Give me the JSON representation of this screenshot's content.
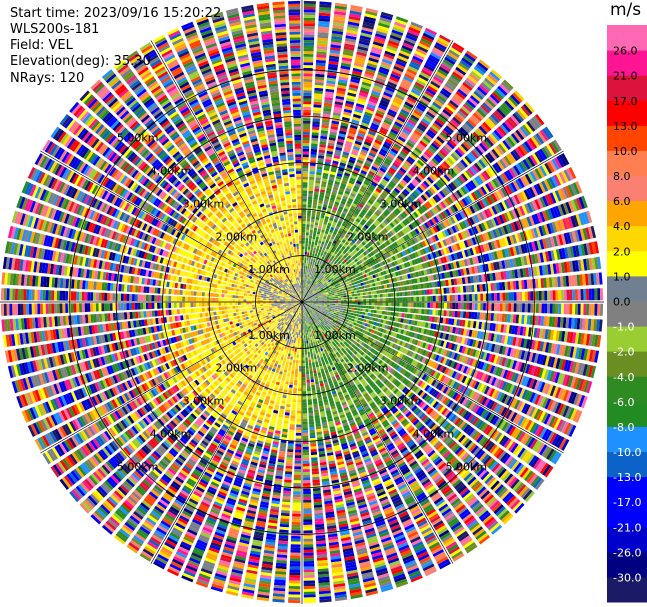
{
  "header": {
    "start_time": "Start time: 2023/09/16 15:20:22",
    "instrument": "WLS200s-181",
    "field": "Field: VEL",
    "elevation": "Elevation(deg): 35.30",
    "nrays": "NRays: 120"
  },
  "chart_data": {
    "type": "heatmap",
    "subtype": "polar-ppi",
    "field": "VEL",
    "units": "m/s",
    "n_rays": 120,
    "elevation_deg": 35.3,
    "range_rings_km": [
      1.0,
      2.0,
      3.0,
      4.0,
      5.0
    ],
    "range_labels": [
      "1.00km",
      "2.00km",
      "3.00km",
      "4.00km",
      "5.00km"
    ],
    "max_range_km": 6.5,
    "colorbar": {
      "title": "m/s",
      "tick_labels": [
        "-30.0",
        "-26.0",
        "-21.0",
        "-17.0",
        "-13.0",
        "-10.0",
        "-8.0",
        "-6.0",
        "-4.0",
        "-2.0",
        "-1.0",
        "0.0",
        "1.0",
        "2.0",
        "4.0",
        "6.0",
        "8.0",
        "10.0",
        "13.0",
        "17.0",
        "21.0",
        "26.0"
      ],
      "colors": [
        "#1a1a66",
        "#000080",
        "#0000cd",
        "#0000ff",
        "#0000ff",
        "#0b63c9",
        "#1e90ff",
        "#228b22",
        "#2e8b22",
        "#6b8e23",
        "#9acd32",
        "#808080",
        "#708090",
        "#ffff00",
        "#ffd700",
        "#ffa500",
        "#fa8072",
        "#ff7f50",
        "#ff4500",
        "#ff0000",
        "#dc143c",
        "#ff1493",
        "#ff69b4"
      ]
    },
    "velocity_pattern": {
      "inner_range_km": 3.0,
      "positive_sector_deg": [
        180,
        360
      ],
      "negative_sector_deg": [
        0,
        180
      ],
      "outer_region": "noise (random colors)"
    }
  }
}
